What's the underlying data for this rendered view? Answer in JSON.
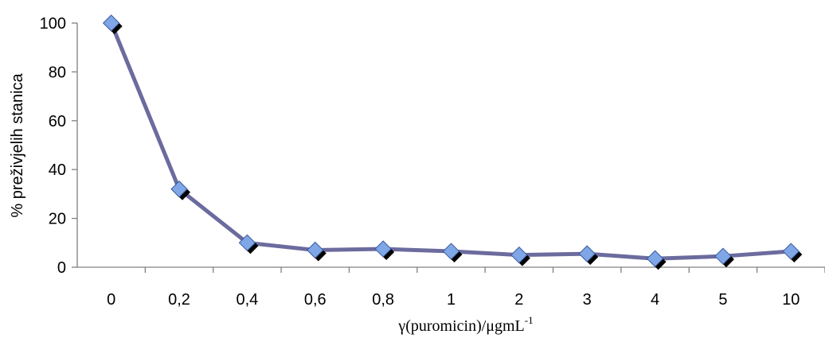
{
  "chart_data": {
    "type": "line",
    "categories": [
      "0",
      "0,2",
      "0,4",
      "0,6",
      "0,8",
      "1",
      "2",
      "3",
      "4",
      "5",
      "10"
    ],
    "values": [
      100,
      32,
      10,
      7,
      7.5,
      6.5,
      5,
      5.5,
      3.5,
      4.5,
      6.5
    ],
    "xlabel_main": "γ(puromicin)/μgmL",
    "xlabel_sup": "-1",
    "ylabel": "% preživjelih stanica",
    "ylim": [
      0,
      100
    ],
    "yticks": [
      "0",
      "20",
      "40",
      "60",
      "80",
      "100"
    ],
    "grid": false,
    "legend": "none",
    "colors": {
      "line": "#6b6b9e",
      "marker_fill": "#7fa6e6",
      "marker_stroke": "#3a5a9a",
      "marker_shadow": "#000000",
      "axis": "#808080"
    }
  }
}
